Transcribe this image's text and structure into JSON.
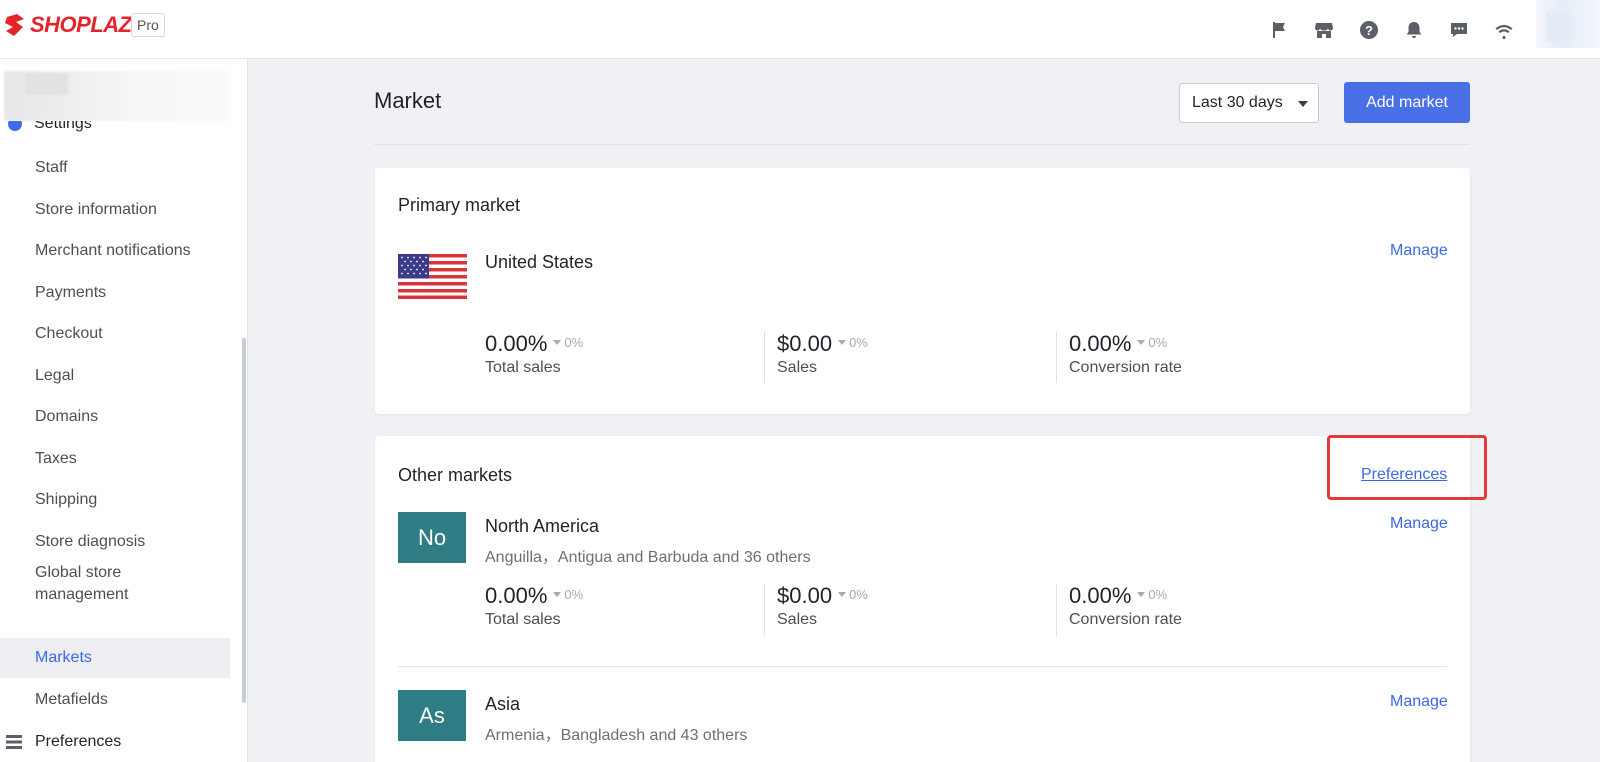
{
  "topbar": {
    "logo_text": "SHOPLAZZA",
    "plan_badge": "Pro",
    "icons": [
      "flag-icon",
      "store-icon",
      "help-icon",
      "bell-icon",
      "chat-icon",
      "wifi-icon"
    ]
  },
  "sidebar": {
    "section_label": "Settings",
    "items": [
      {
        "label": "Staff"
      },
      {
        "label": "Store information"
      },
      {
        "label": "Merchant notifications"
      },
      {
        "label": "Payments"
      },
      {
        "label": "Checkout"
      },
      {
        "label": "Legal"
      },
      {
        "label": "Domains"
      },
      {
        "label": "Taxes"
      },
      {
        "label": "Shipping"
      },
      {
        "label": "Store diagnosis"
      },
      {
        "label": "Global store management"
      },
      {
        "label": "Markets",
        "active": true
      },
      {
        "label": "Metafields"
      }
    ],
    "preferences_label": "Preferences"
  },
  "main": {
    "title": "Market",
    "date_range": "Last 30 days",
    "add_button": "Add market",
    "primary": {
      "title": "Primary market",
      "manage": "Manage",
      "market": "United States",
      "stats": [
        {
          "value": "0.00%",
          "delta": "0%",
          "label": "Total sales"
        },
        {
          "value": "$0.00",
          "delta": "0%",
          "label": "Sales"
        },
        {
          "value": "0.00%",
          "delta": "0%",
          "label": "Conversion rate"
        }
      ]
    },
    "other": {
      "title": "Other markets",
      "preferences_link": "Preferences",
      "markets": [
        {
          "abbr": "No",
          "name": "North America",
          "countries": "Anguilla，Antigua and Barbuda and 36 others",
          "manage": "Manage",
          "stats": [
            {
              "value": "0.00%",
              "delta": "0%",
              "label": "Total sales"
            },
            {
              "value": "$0.00",
              "delta": "0%",
              "label": "Sales"
            },
            {
              "value": "0.00%",
              "delta": "0%",
              "label": "Conversion rate"
            }
          ]
        },
        {
          "abbr": "As",
          "name": "Asia",
          "countries": "Armenia，Bangladesh and 43 others",
          "manage": "Manage"
        }
      ]
    }
  },
  "colors": {
    "brand_red": "#e5232a",
    "accent_blue": "#4a70e8",
    "link_blue": "#3b68e6",
    "region_teal": "#2e7d84",
    "highlight_red": "#e53838"
  }
}
